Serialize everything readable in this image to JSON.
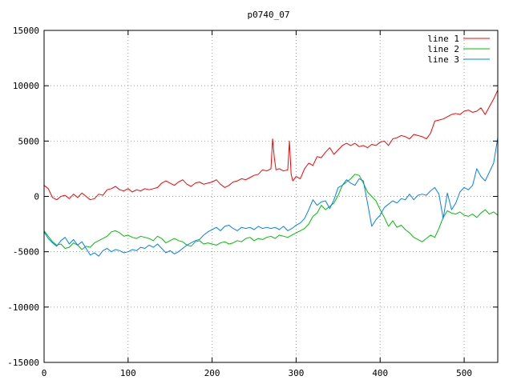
{
  "chart_data": {
    "type": "line",
    "title": "p0740_07",
    "xlabel": "",
    "ylabel": "",
    "xlim": [
      0,
      540
    ],
    "ylim": [
      -15000,
      15000
    ],
    "xticks": [
      0,
      100,
      200,
      300,
      400,
      500
    ],
    "yticks": [
      -15000,
      -10000,
      -5000,
      0,
      5000,
      10000,
      15000
    ],
    "grid": true,
    "legend_position": "top-right",
    "series": [
      {
        "name": "line 1",
        "color": "#ff0000",
        "x": [
          0,
          5,
          10,
          15,
          20,
          25,
          30,
          35,
          40,
          45,
          50,
          55,
          60,
          65,
          70,
          75,
          80,
          85,
          90,
          95,
          100,
          105,
          110,
          115,
          120,
          125,
          130,
          135,
          140,
          145,
          150,
          155,
          160,
          165,
          170,
          175,
          180,
          185,
          190,
          195,
          200,
          205,
          210,
          215,
          220,
          225,
          230,
          235,
          240,
          245,
          250,
          255,
          260,
          265,
          270,
          272,
          274,
          276,
          280,
          285,
          290,
          292,
          294,
          296,
          300,
          305,
          310,
          315,
          320,
          325,
          330,
          335,
          340,
          345,
          350,
          355,
          360,
          365,
          370,
          375,
          380,
          385,
          390,
          395,
          400,
          405,
          410,
          415,
          420,
          425,
          430,
          435,
          440,
          445,
          450,
          455,
          460,
          465,
          470,
          475,
          480,
          485,
          490,
          495,
          500,
          505,
          510,
          515,
          520,
          525,
          530,
          535,
          540
        ],
        "y": [
          1000,
          700,
          -100,
          -300,
          0,
          100,
          -200,
          200,
          -100,
          300,
          0,
          -300,
          -200,
          200,
          100,
          600,
          700,
          900,
          600,
          500,
          700,
          400,
          600,
          500,
          700,
          600,
          700,
          800,
          1200,
          1400,
          1200,
          1000,
          1300,
          1500,
          1100,
          900,
          1200,
          1300,
          1100,
          1200,
          1300,
          1500,
          1100,
          800,
          1000,
          1300,
          1400,
          1600,
          1500,
          1700,
          1900,
          2000,
          2400,
          2300,
          2500,
          5200,
          3500,
          2400,
          2500,
          2300,
          2400,
          5000,
          2000,
          1400,
          1800,
          1600,
          2500,
          3000,
          2800,
          3600,
          3500,
          4000,
          4400,
          3800,
          4200,
          4600,
          4800,
          4600,
          4800,
          4500,
          4600,
          4400,
          4700,
          4600,
          4900,
          5000,
          4600,
          5200,
          5300,
          5500,
          5400,
          5200,
          5600,
          5500,
          5400,
          5200,
          5700,
          6800,
          6900,
          7000,
          7200,
          7400,
          7500,
          7400,
          7700,
          7800,
          7600,
          7700,
          8000,
          7400,
          8100,
          8800,
          9600
        ]
      },
      {
        "name": "line 2",
        "color": "#00c000",
        "x": [
          0,
          5,
          10,
          15,
          20,
          25,
          30,
          35,
          40,
          45,
          50,
          55,
          60,
          65,
          70,
          75,
          80,
          85,
          90,
          95,
          100,
          105,
          110,
          115,
          120,
          125,
          130,
          135,
          140,
          145,
          150,
          155,
          160,
          165,
          170,
          175,
          180,
          185,
          190,
          195,
          200,
          205,
          210,
          215,
          220,
          225,
          230,
          235,
          240,
          245,
          250,
          255,
          260,
          265,
          270,
          275,
          280,
          285,
          290,
          295,
          300,
          305,
          310,
          315,
          320,
          325,
          330,
          335,
          340,
          345,
          350,
          355,
          360,
          365,
          370,
          375,
          380,
          385,
          390,
          395,
          400,
          405,
          410,
          415,
          420,
          425,
          430,
          435,
          440,
          445,
          450,
          455,
          460,
          465,
          470,
          475,
          480,
          485,
          490,
          495,
          500,
          505,
          510,
          515,
          520,
          525,
          530,
          535,
          540
        ],
        "y": [
          -3100,
          -3600,
          -4100,
          -4400,
          -4300,
          -4700,
          -4600,
          -4200,
          -4400,
          -4800,
          -4500,
          -4600,
          -4200,
          -4000,
          -3800,
          -3600,
          -3200,
          -3100,
          -3300,
          -3600,
          -3500,
          -3700,
          -3800,
          -3600,
          -3700,
          -3800,
          -4000,
          -3600,
          -3800,
          -4200,
          -4000,
          -3800,
          -4000,
          -4100,
          -4400,
          -4500,
          -4100,
          -4000,
          -4300,
          -4200,
          -4300,
          -4400,
          -4200,
          -4100,
          -4300,
          -4200,
          -4000,
          -4100,
          -3800,
          -3700,
          -4000,
          -3800,
          -3900,
          -3700,
          -3600,
          -3800,
          -3500,
          -3600,
          -3700,
          -3500,
          -3300,
          -3100,
          -2900,
          -2500,
          -1800,
          -1500,
          -800,
          -1200,
          -900,
          -600,
          100,
          1000,
          1300,
          1600,
          2000,
          1900,
          1200,
          400,
          0,
          -400,
          -1200,
          -1900,
          -2700,
          -2200,
          -2800,
          -2600,
          -3000,
          -3300,
          -3700,
          -3900,
          -4100,
          -3800,
          -3500,
          -3700,
          -2900,
          -1900,
          -1300,
          -1500,
          -1600,
          -1400,
          -1700,
          -1800,
          -1600,
          -1900,
          -1500,
          -1200,
          -1600,
          -1400,
          -1700
        ]
      },
      {
        "name": "line 3",
        "color": "#0080ff",
        "x": [
          0,
          5,
          10,
          15,
          20,
          25,
          30,
          35,
          40,
          45,
          50,
          55,
          60,
          65,
          70,
          75,
          80,
          85,
          90,
          95,
          100,
          105,
          110,
          115,
          120,
          125,
          130,
          135,
          140,
          145,
          150,
          155,
          160,
          165,
          170,
          175,
          180,
          185,
          190,
          195,
          200,
          205,
          210,
          215,
          220,
          225,
          230,
          235,
          240,
          245,
          250,
          255,
          260,
          265,
          270,
          275,
          280,
          285,
          290,
          295,
          300,
          305,
          310,
          315,
          320,
          325,
          330,
          335,
          340,
          345,
          350,
          355,
          360,
          365,
          370,
          375,
          380,
          385,
          390,
          395,
          400,
          405,
          410,
          415,
          420,
          425,
          430,
          435,
          440,
          445,
          450,
          455,
          460,
          465,
          470,
          475,
          480,
          485,
          490,
          495,
          500,
          505,
          510,
          515,
          520,
          525,
          530,
          535,
          540
        ],
        "y": [
          -3200,
          -3800,
          -4200,
          -4500,
          -4000,
          -3700,
          -4300,
          -3900,
          -4400,
          -4100,
          -4700,
          -5300,
          -5100,
          -5400,
          -4900,
          -4700,
          -5000,
          -4800,
          -4900,
          -5100,
          -5000,
          -4800,
          -4900,
          -4600,
          -4700,
          -4400,
          -4600,
          -4300,
          -4700,
          -5100,
          -4900,
          -5200,
          -5000,
          -4700,
          -4400,
          -4200,
          -4000,
          -3900,
          -3500,
          -3200,
          -3000,
          -2800,
          -3100,
          -2700,
          -2600,
          -2900,
          -3100,
          -2800,
          -2900,
          -2800,
          -3000,
          -2700,
          -2900,
          -2800,
          -2900,
          -2800,
          -3000,
          -2700,
          -3100,
          -2900,
          -2600,
          -2400,
          -2000,
          -1200,
          -300,
          -800,
          -500,
          -400,
          -1100,
          -300,
          800,
          1000,
          1500,
          1200,
          1000,
          1600,
          1400,
          -600,
          -2700,
          -2100,
          -1700,
          -1000,
          -700,
          -400,
          -600,
          -200,
          -300,
          200,
          -300,
          100,
          200,
          100,
          500,
          800,
          200,
          -2000,
          300,
          -1200,
          -600,
          400,
          800,
          600,
          1000,
          2500,
          1800,
          1400,
          2200,
          3000,
          5300
        ]
      }
    ]
  }
}
